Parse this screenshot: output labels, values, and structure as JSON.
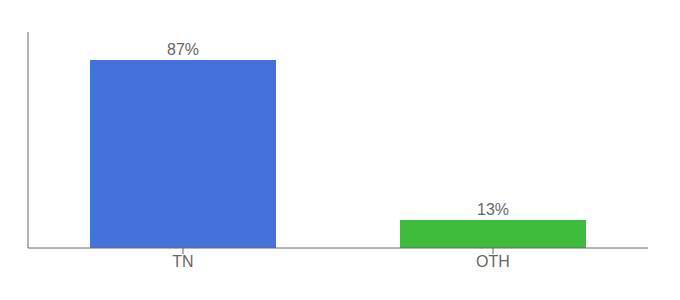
{
  "chart_data": {
    "type": "bar",
    "categories": [
      "TN",
      "OTH"
    ],
    "values": [
      87,
      13
    ],
    "value_labels": [
      "87%",
      "13%"
    ],
    "colors": [
      "#4472db",
      "#3dbb3d"
    ],
    "ylim": [
      0,
      100
    ],
    "data_labels": true,
    "tick_labels": "x",
    "grid": false
  }
}
